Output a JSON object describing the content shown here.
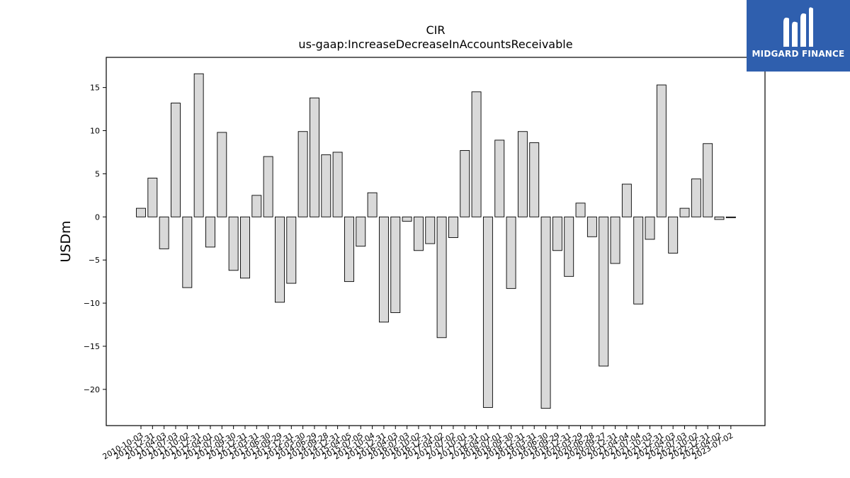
{
  "logo": {
    "text": "MIDGARD FINANCE"
  },
  "chart_data": {
    "type": "bar",
    "title": "CIR",
    "subtitle": "us-gaap:IncreaseDecreaseInAccountsReceivable",
    "ylabel": "USDm",
    "xlabel": "",
    "ylim": [
      -24.2,
      18.5
    ],
    "yticks": [
      -20,
      -15,
      -10,
      -5,
      0,
      5,
      10,
      15
    ],
    "grid": false,
    "bar_color": "#d9d9d9",
    "edge_color": "#000000",
    "categories": [
      "2010-10-03",
      "2010-12-31",
      "2011-04-03",
      "2011-07-03",
      "2011-10-02",
      "2011-12-31",
      "2012-04-01",
      "2012-07-01",
      "2012-09-30",
      "2012-12-31",
      "2013-03-31",
      "2013-06-30",
      "2013-09-29",
      "2013-12-31",
      "2014-03-30",
      "2014-06-29",
      "2014-09-28",
      "2014-12-31",
      "2015-04-05",
      "2015-07-05",
      "2015-10-04",
      "2015-12-31",
      "2016-04-03",
      "2016-07-03",
      "2016-10-02",
      "2016-12-31",
      "2017-04-02",
      "2017-07-02",
      "2017-10-01",
      "2017-12-31",
      "2018-04-01",
      "2018-07-01",
      "2018-09-30",
      "2018-12-31",
      "2019-03-31",
      "2019-06-30",
      "2019-09-29",
      "2019-12-31",
      "2020-03-29",
      "2020-06-28",
      "2020-09-27",
      "2020-12-31",
      "2021-04-04",
      "2021-07-04",
      "2021-10-03",
      "2021-12-31",
      "2022-04-03",
      "2022-07-03",
      "2022-10-02",
      "2022-12-31",
      "2023-04-02",
      "2023-07-02"
    ],
    "values": [
      1.0,
      4.5,
      -3.7,
      13.2,
      -8.2,
      16.6,
      -3.5,
      9.8,
      -6.2,
      -7.1,
      2.5,
      7.0,
      -9.9,
      -7.7,
      9.9,
      13.8,
      7.2,
      7.5,
      -7.5,
      -3.4,
      2.8,
      -12.2,
      -11.1,
      -0.5,
      -3.9,
      -3.1,
      -14.0,
      -2.4,
      7.7,
      14.5,
      -22.1,
      8.9,
      -8.3,
      9.9,
      8.6,
      -22.2,
      -3.9,
      -6.9,
      1.6,
      -2.3,
      -17.3,
      -5.4,
      3.8,
      -10.1,
      -2.6,
      15.3,
      -4.2,
      1.0,
      4.4,
      8.5,
      -0.3,
      -0.1
    ]
  }
}
